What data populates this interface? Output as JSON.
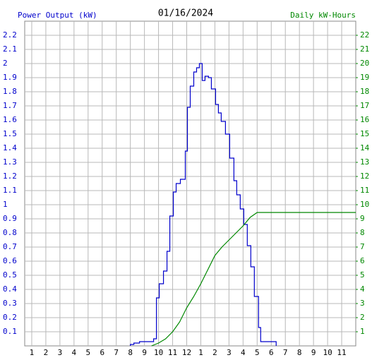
{
  "chart_data": {
    "type": "line",
    "title": "01/16/2024",
    "y_label": "Power Output (kW)",
    "y2_label": "Daily kW-Hours",
    "xlim": [
      0.5,
      24
    ],
    "xticks": [
      1,
      2,
      3,
      4,
      5,
      6,
      7,
      8,
      9,
      10,
      11,
      12,
      {
        "value": 13,
        "label": "1"
      },
      {
        "value": 14,
        "label": "2"
      },
      {
        "value": 15,
        "label": "3"
      },
      {
        "value": 16,
        "label": "4"
      },
      {
        "value": 17,
        "label": "5"
      },
      {
        "value": 18,
        "label": "6"
      },
      {
        "value": 19,
        "label": "7"
      },
      {
        "value": 20,
        "label": "8"
      },
      {
        "value": 21,
        "label": "9"
      },
      {
        "value": 22,
        "label": "10"
      },
      {
        "value": 23,
        "label": "11"
      }
    ],
    "ylim": [
      0,
      2.3
    ],
    "yticks": [
      0.1,
      0.2,
      0.3,
      0.4,
      0.5,
      0.6,
      0.7,
      0.8,
      0.9,
      1.0,
      1.1,
      1.2,
      1.3,
      1.4,
      1.5,
      1.6,
      1.7,
      1.8,
      1.9,
      2.0,
      2.1,
      2.2
    ],
    "y2lim": [
      0,
      23
    ],
    "y2ticks": [
      1,
      2,
      3,
      4,
      5,
      6,
      7,
      8,
      9,
      10,
      11,
      12,
      13,
      14,
      15,
      16,
      17,
      18,
      19,
      20,
      21,
      22
    ],
    "grid": true,
    "y_label_color": "#0000cc",
    "y2_label_color": "#008800",
    "series": [
      {
        "color": "#0000cc",
        "x": [
          8.0,
          8.0,
          8.25,
          8.25,
          8.65,
          8.65,
          9.65,
          9.65,
          9.85,
          9.85,
          10.05,
          10.05,
          10.35,
          10.35,
          10.6,
          10.6,
          10.8,
          10.8,
          11.05,
          11.05,
          11.25,
          11.25,
          11.55,
          11.55,
          11.9,
          11.9,
          12.05,
          12.05,
          12.25,
          12.25,
          12.5,
          12.5,
          12.7,
          12.7,
          12.9,
          12.9,
          13.1,
          13.1,
          13.3,
          13.3,
          13.55,
          13.55,
          13.75,
          13.75,
          14.05,
          14.05,
          14.25,
          14.25,
          14.45,
          14.45,
          14.75,
          14.75,
          15.05,
          15.05,
          15.35,
          15.35,
          15.55,
          15.55,
          15.8,
          15.8,
          16.05,
          16.05,
          16.3,
          16.3,
          16.55,
          16.55,
          16.8,
          16.8,
          17.1,
          17.1,
          17.25,
          17.25,
          18.35,
          18.35
        ],
        "values": [
          0,
          0.01,
          0.01,
          0.02,
          0.02,
          0.03,
          0.03,
          0.05,
          0.05,
          0.34,
          0.34,
          0.44,
          0.44,
          0.53,
          0.53,
          0.67,
          0.67,
          0.92,
          0.92,
          1.09,
          1.09,
          1.15,
          1.15,
          1.18,
          1.18,
          1.38,
          1.38,
          1.69,
          1.69,
          1.84,
          1.84,
          1.94,
          1.94,
          1.97,
          1.97,
          2.0,
          2.0,
          1.88,
          1.88,
          1.91,
          1.91,
          1.9,
          1.9,
          1.82,
          1.82,
          1.71,
          1.71,
          1.65,
          1.65,
          1.59,
          1.59,
          1.5,
          1.5,
          1.33,
          1.33,
          1.17,
          1.17,
          1.07,
          1.07,
          0.97,
          0.97,
          0.86,
          0.86,
          0.71,
          0.71,
          0.56,
          0.56,
          0.35,
          0.35,
          0.13,
          0.13,
          0.03,
          0.03,
          0
        ]
      },
      {
        "color": "#008800",
        "axis": "y2",
        "x": [
          9.5,
          10.0,
          10.5,
          11.0,
          11.5,
          12.0,
          12.5,
          13.0,
          13.5,
          14.0,
          14.5,
          15.0,
          15.5,
          16.0,
          16.5,
          17.0,
          24.0
        ],
        "values": [
          0,
          0.2,
          0.5,
          1.0,
          1.7,
          2.7,
          3.5,
          4.4,
          5.4,
          6.4,
          7.0,
          7.5,
          8.0,
          8.5,
          9.1,
          9.45,
          9.45
        ]
      }
    ]
  }
}
